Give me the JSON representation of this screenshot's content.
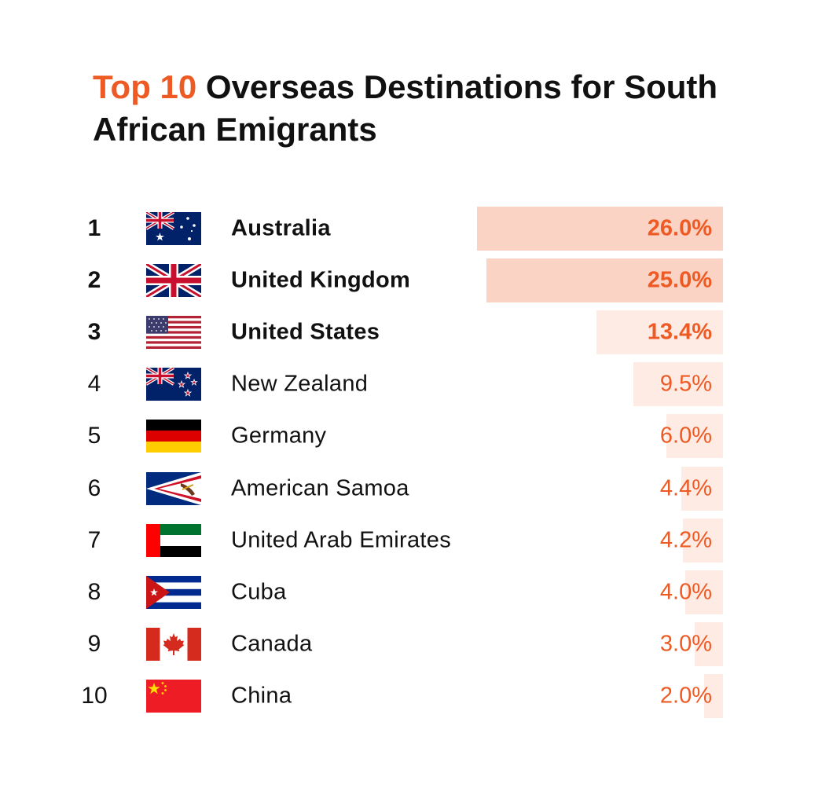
{
  "title": {
    "accent": "Top 10",
    "rest": " Overseas Destinations for South African Emigrants"
  },
  "colors": {
    "accent": "#ee5a24",
    "bar_top": "#fbd3c5",
    "bar_rest": "#fdebe4",
    "text": "#111111"
  },
  "chart_data": {
    "type": "bar",
    "orientation": "horizontal",
    "title": "Top 10 Overseas Destinations for South African Emigrants",
    "categories": [
      "Australia",
      "United Kingdom",
      "United States",
      "New Zealand",
      "Germany",
      "American Samoa",
      "United Arab Emirates",
      "Cuba",
      "Canada",
      "China"
    ],
    "values": [
      26.0,
      25.0,
      13.4,
      9.5,
      6.0,
      4.4,
      4.2,
      4.0,
      3.0,
      2.0
    ],
    "unit": "%",
    "rows": [
      {
        "rank": "1",
        "country": "Australia",
        "value": 26.0,
        "label": "26.0%",
        "flag": "australia-flag-icon"
      },
      {
        "rank": "2",
        "country": "United Kingdom",
        "value": 25.0,
        "label": "25.0%",
        "flag": "united-kingdom-flag-icon"
      },
      {
        "rank": "3",
        "country": "United States",
        "value": 13.4,
        "label": "13.4%",
        "flag": "united-states-flag-icon"
      },
      {
        "rank": "4",
        "country": "New Zealand",
        "value": 9.5,
        "label": "9.5%",
        "flag": "new-zealand-flag-icon"
      },
      {
        "rank": "5",
        "country": "Germany",
        "value": 6.0,
        "label": "6.0%",
        "flag": "germany-flag-icon"
      },
      {
        "rank": "6",
        "country": "American Samoa",
        "value": 4.4,
        "label": "4.4%",
        "flag": "american-samoa-flag-icon"
      },
      {
        "rank": "7",
        "country": "United Arab Emirates",
        "value": 4.2,
        "label": "4.2%",
        "flag": "uae-flag-icon"
      },
      {
        "rank": "8",
        "country": "Cuba",
        "value": 4.0,
        "label": "4.0%",
        "flag": "cuba-flag-icon"
      },
      {
        "rank": "9",
        "country": "Canada",
        "value": 3.0,
        "label": "3.0%",
        "flag": "canada-flag-icon"
      },
      {
        "rank": "10",
        "country": "China",
        "value": 2.0,
        "label": "2.0%",
        "flag": "china-flag-icon"
      }
    ],
    "emphasized_top": 3,
    "legend": "none",
    "grid": false
  }
}
